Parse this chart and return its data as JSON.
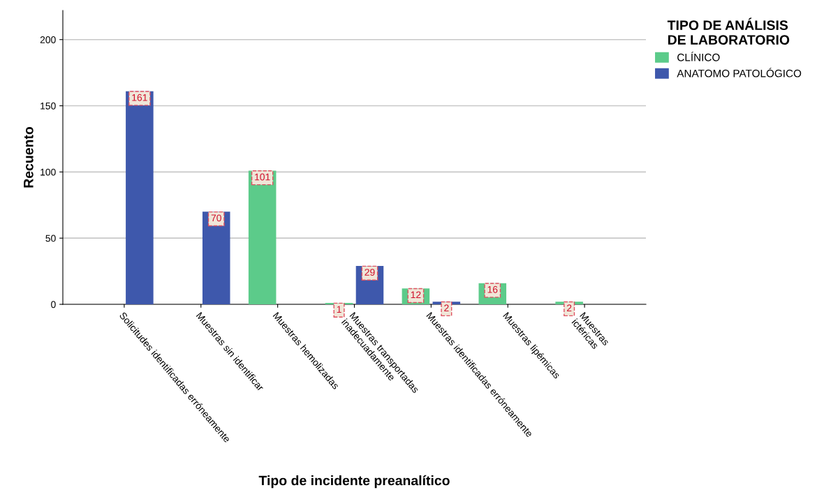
{
  "chart_data": {
    "type": "bar",
    "xlabel": "Tipo de incidente preanalítico",
    "ylabel": "Recuento",
    "legend_title": "TIPO DE ANÁLISIS\nDE LABORATORIO",
    "categories": [
      "Solicitudes identificadas erróneamente",
      "Muestras sin identificar",
      "Muestras hemolizadas",
      "Muestras transportadas\ninadecuadamente",
      "Muestras identificadas erróneamente",
      "Muestras lipémicas",
      "Muestras\nictéricas"
    ],
    "series": [
      {
        "name": "CLÍNICO",
        "color": "#5ccb8a",
        "values": [
          null,
          null,
          101,
          1,
          12,
          16,
          2
        ]
      },
      {
        "name": "ANATOMO PATOLÓGICO",
        "color": "#3e58ac",
        "values": [
          161,
          70,
          null,
          29,
          2,
          null,
          null
        ]
      }
    ],
    "ylim": [
      0,
      222
    ],
    "yticks": [
      0,
      50,
      100,
      150,
      200
    ],
    "grid": "y",
    "legend": "top right",
    "data_labels": true
  }
}
